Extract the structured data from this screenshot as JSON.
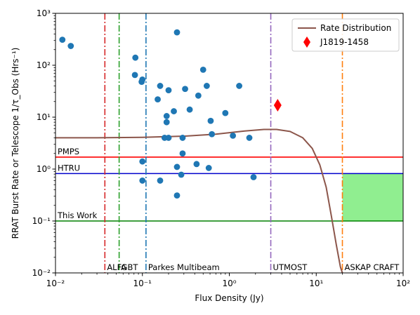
{
  "chart_data": {
    "type": "scatter",
    "xlabel": "Flux Density (Jy)",
    "ylabel": "RRAT Burst Rate or Telescope 1/τ_Obs (Hrs⁻¹)",
    "x_scale": "log",
    "y_scale": "log",
    "xlim": [
      0.01,
      100
    ],
    "ylim": [
      0.01,
      1000
    ],
    "x_ticks": [
      {
        "value": 0.01,
        "label": "10⁻²"
      },
      {
        "value": 0.1,
        "label": "10⁻¹"
      },
      {
        "value": 1,
        "label": "10⁰"
      },
      {
        "value": 10,
        "label": "10¹"
      },
      {
        "value": 100,
        "label": "10²"
      }
    ],
    "y_ticks": [
      {
        "value": 0.01,
        "label": "10⁻²"
      },
      {
        "value": 0.1,
        "label": "10⁻¹"
      },
      {
        "value": 1,
        "label": "10⁰"
      },
      {
        "value": 10,
        "label": "10¹"
      },
      {
        "value": 100,
        "label": "10²"
      },
      {
        "value": 1000,
        "label": "10³"
      }
    ],
    "rrat_points": {
      "color": "#1f77b4",
      "points": [
        [
          0.012,
          310
        ],
        [
          0.015,
          235
        ],
        [
          0.083,
          140
        ],
        [
          0.082,
          65
        ],
        [
          0.098,
          48
        ],
        [
          0.1,
          53
        ],
        [
          0.1,
          1.4
        ],
        [
          0.1,
          0.6
        ],
        [
          0.15,
          22
        ],
        [
          0.16,
          40
        ],
        [
          0.16,
          0.6
        ],
        [
          0.18,
          4.0
        ],
        [
          0.19,
          10.5
        ],
        [
          0.19,
          8.0
        ],
        [
          0.2,
          4.0
        ],
        [
          0.2,
          33
        ],
        [
          0.23,
          13
        ],
        [
          0.25,
          430
        ],
        [
          0.25,
          1.1
        ],
        [
          0.25,
          0.31
        ],
        [
          0.28,
          0.78
        ],
        [
          0.29,
          2.0
        ],
        [
          0.29,
          4.0
        ],
        [
          0.31,
          35
        ],
        [
          0.35,
          14
        ],
        [
          0.42,
          1.25
        ],
        [
          0.44,
          26
        ],
        [
          0.5,
          82
        ],
        [
          0.55,
          40
        ],
        [
          0.58,
          1.05
        ],
        [
          0.61,
          8.5
        ],
        [
          0.63,
          4.7
        ],
        [
          0.9,
          12
        ],
        [
          1.1,
          4.4
        ],
        [
          1.3,
          40
        ],
        [
          1.7,
          4.0
        ],
        [
          1.9,
          0.7
        ]
      ]
    },
    "j1819": {
      "label": "J1819-1458",
      "x": 3.6,
      "y": 17,
      "color": "#ff0000"
    },
    "rate_distribution": {
      "label": "Rate Distribution",
      "color": "#8c564b",
      "x": [
        0.01,
        0.03,
        0.1,
        0.3,
        0.7,
        1.5,
        2.5,
        3.5,
        5,
        7,
        9,
        11,
        13,
        15,
        17,
        19,
        20
      ],
      "y": [
        4.0,
        4.0,
        4.1,
        4.3,
        4.7,
        5.4,
        5.8,
        5.8,
        5.3,
        4.0,
        2.5,
        1.2,
        0.45,
        0.12,
        0.035,
        0.013,
        0.01
      ]
    },
    "telescope_lines": [
      {
        "label": "PMPS",
        "y": 1.7,
        "color": "#ff0000"
      },
      {
        "label": "HTRU",
        "y": 0.82,
        "color": "#0000cc"
      },
      {
        "label": "This Work",
        "y": 0.1,
        "color": "#008000"
      }
    ],
    "survey_limits": [
      {
        "label": "ALFA",
        "x": 0.037,
        "color": "#d62728"
      },
      {
        "label": "GBT",
        "x": 0.054,
        "color": "#2ca02c"
      },
      {
        "label": "Parkes Multibeam",
        "x": 0.11,
        "color": "#1f77b4"
      },
      {
        "label": "UTMOST",
        "x": 3.0,
        "color": "#9467bd"
      },
      {
        "label": "ASKAP CRAFT",
        "x": 20,
        "color": "#ff7f0e"
      }
    ],
    "shaded_region": {
      "x": [
        20,
        100
      ],
      "y": [
        0.1,
        0.82
      ],
      "color": "#90ee90"
    },
    "legend": {
      "position": "top-right",
      "entries": [
        {
          "label": "Rate Distribution",
          "marker": "line",
          "color": "#8c564b"
        },
        {
          "label": "J1819-1458",
          "marker": "diamond",
          "color": "#ff0000"
        }
      ]
    }
  }
}
